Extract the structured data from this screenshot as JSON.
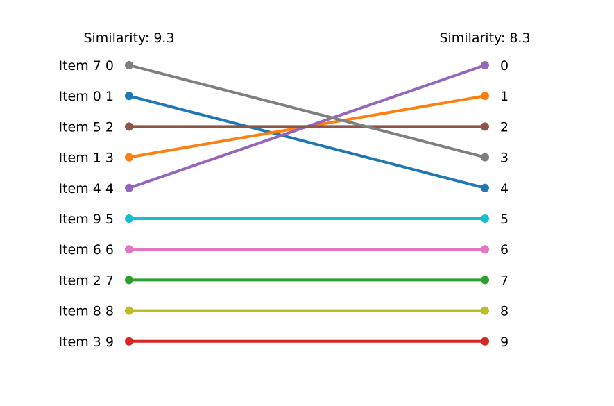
{
  "chart_data": {
    "type": "line",
    "title": "",
    "left_title": "Similarity: 9.3",
    "right_title": "Similarity: 8.3",
    "left_labels": [
      "Item 7 0",
      "Item 0 1",
      "Item 5 2",
      "Item 1 3",
      "Item 4 4",
      "Item 9 5",
      "Item 6 6",
      "Item 2 7",
      "Item 8 8",
      "Item 3 9"
    ],
    "right_labels": [
      "0",
      "1",
      "2",
      "3",
      "4",
      "5",
      "6",
      "7",
      "8",
      "9"
    ],
    "series": [
      {
        "item": "Item 0",
        "left_rank": 1,
        "right_rank": 4,
        "color": "#1f77b4"
      },
      {
        "item": "Item 1",
        "left_rank": 3,
        "right_rank": 1,
        "color": "#ff7f0e"
      },
      {
        "item": "Item 2",
        "left_rank": 7,
        "right_rank": 7,
        "color": "#2ca02c"
      },
      {
        "item": "Item 3",
        "left_rank": 9,
        "right_rank": 9,
        "color": "#d62728"
      },
      {
        "item": "Item 4",
        "left_rank": 4,
        "right_rank": 0,
        "color": "#9467bd"
      },
      {
        "item": "Item 5",
        "left_rank": 2,
        "right_rank": 2,
        "color": "#8c564b"
      },
      {
        "item": "Item 6",
        "left_rank": 6,
        "right_rank": 6,
        "color": "#e377c2"
      },
      {
        "item": "Item 7",
        "left_rank": 0,
        "right_rank": 3,
        "color": "#7f7f7f"
      },
      {
        "item": "Item 8",
        "left_rank": 8,
        "right_rank": 8,
        "color": "#bcbd22"
      },
      {
        "item": "Item 9",
        "left_rank": 5,
        "right_rank": 5,
        "color": "#17becf"
      }
    ]
  }
}
